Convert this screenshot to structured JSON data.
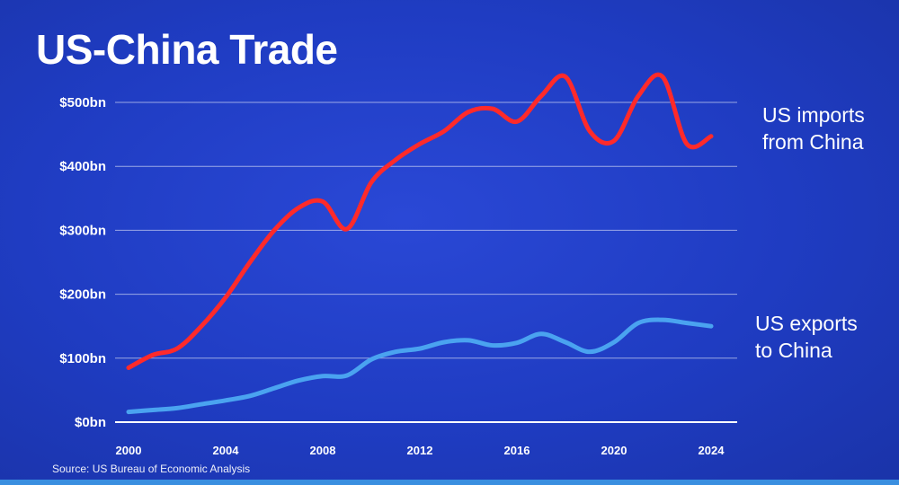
{
  "chart_data": {
    "type": "line",
    "title": "US-China Trade",
    "source": "Source: US Bureau of Economic Analysis",
    "xlim": [
      2000,
      2024
    ],
    "ylim": [
      0,
      500
    ],
    "x_ticks": [
      2000,
      2004,
      2008,
      2012,
      2016,
      2020,
      2024
    ],
    "y_ticks": [
      0,
      100,
      200,
      300,
      400,
      500
    ],
    "y_tick_labels": [
      "$0bn",
      "$100bn",
      "$200bn",
      "$300bn",
      "$400bn",
      "$500bn"
    ],
    "x_tick_labels": [
      "2000",
      "2004",
      "2008",
      "2012",
      "2016",
      "2020",
      "2024"
    ],
    "xlabel": "",
    "ylabel": "",
    "series": [
      {
        "name": "US imports from China",
        "label_line1": "US imports",
        "label_line2": "from China",
        "color": "#ff2a2a",
        "x": [
          2000,
          2001,
          2002,
          2003,
          2004,
          2005,
          2006,
          2007,
          2008,
          2009,
          2010,
          2011,
          2012,
          2013,
          2014,
          2015,
          2016,
          2017,
          2018,
          2019,
          2020,
          2021,
          2022,
          2023,
          2024
        ],
        "values": [
          85,
          105,
          115,
          150,
          195,
          250,
          300,
          335,
          345,
          302,
          375,
          410,
          435,
          455,
          485,
          490,
          470,
          510,
          540,
          455,
          440,
          510,
          540,
          435,
          447
        ]
      },
      {
        "name": "US exports to China",
        "label_line1": "US exports",
        "label_line2": "to China",
        "color": "#4aa3f0",
        "x": [
          2000,
          2001,
          2002,
          2003,
          2004,
          2005,
          2006,
          2007,
          2008,
          2009,
          2010,
          2011,
          2012,
          2013,
          2014,
          2015,
          2016,
          2017,
          2018,
          2019,
          2020,
          2021,
          2022,
          2023,
          2024
        ],
        "values": [
          16,
          19,
          22,
          28,
          34,
          41,
          53,
          65,
          72,
          73,
          98,
          110,
          115,
          125,
          128,
          120,
          124,
          138,
          125,
          110,
          125,
          155,
          160,
          155,
          150
        ]
      }
    ]
  }
}
